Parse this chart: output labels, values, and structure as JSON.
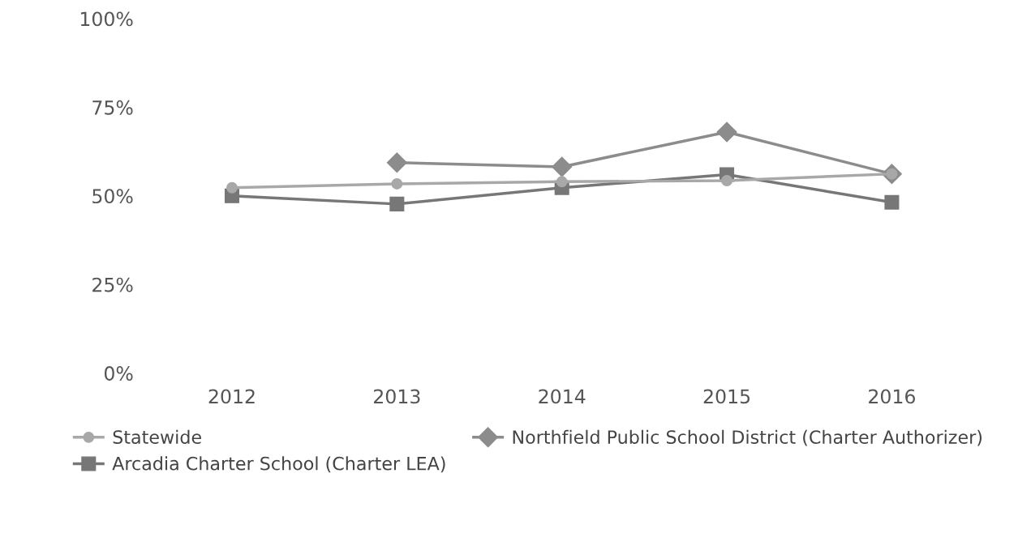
{
  "chart_data": {
    "type": "line",
    "categories": [
      "2012",
      "2013",
      "2014",
      "2015",
      "2016"
    ],
    "ylim": [
      0,
      100
    ],
    "yticks": [
      {
        "value": 0,
        "label": "0%"
      },
      {
        "value": 25,
        "label": "25%"
      },
      {
        "value": 50,
        "label": "50%"
      },
      {
        "value": 75,
        "label": "75%"
      },
      {
        "value": 100,
        "label": "100%"
      }
    ],
    "grid": false,
    "legend": "bottom",
    "series": [
      {
        "name": "Statewide",
        "color": "#a8a8a8",
        "marker": "circle",
        "values": [
          52.3,
          53.4,
          54,
          54.3,
          56.2
        ]
      },
      {
        "name": "Northfield Public School District (Charter Authorizer)",
        "color": "#8c8c8c",
        "marker": "diamond",
        "values": [
          null,
          59.4,
          58.2,
          68,
          56.2
        ]
      },
      {
        "name": "Arcadia Charter School (Charter LEA)",
        "color": "#777777",
        "marker": "square",
        "values": [
          50,
          47.7,
          52.3,
          56,
          48.2
        ]
      }
    ]
  }
}
